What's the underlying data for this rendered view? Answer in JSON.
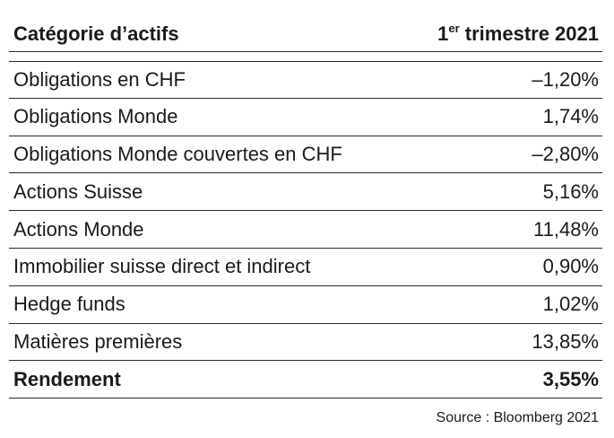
{
  "table": {
    "header": {
      "category": "Catégorie d’actifs",
      "period_superscript_prefix": "1",
      "period_superscript": "er",
      "period_rest": " trimestre 2021"
    },
    "rows": [
      {
        "category": "Obligations en CHF",
        "value": "–1,20%"
      },
      {
        "category": "Obligations Monde",
        "value": "1,74%"
      },
      {
        "category": "Obligations Monde couvertes en CHF",
        "value": "–2,80%"
      },
      {
        "category": "Actions Suisse",
        "value": "5,16%"
      },
      {
        "category": "Actions Monde",
        "value": "11,48%"
      },
      {
        "category": "Immobilier suisse direct et indirect",
        "value": "0,90%"
      },
      {
        "category": "Hedge funds",
        "value": "1,02%"
      },
      {
        "category": "Matières premières",
        "value": "13,85%"
      }
    ],
    "total": {
      "label": "Rendement",
      "value": "3,55%"
    }
  },
  "source": "Source : Bloomberg 2021"
}
